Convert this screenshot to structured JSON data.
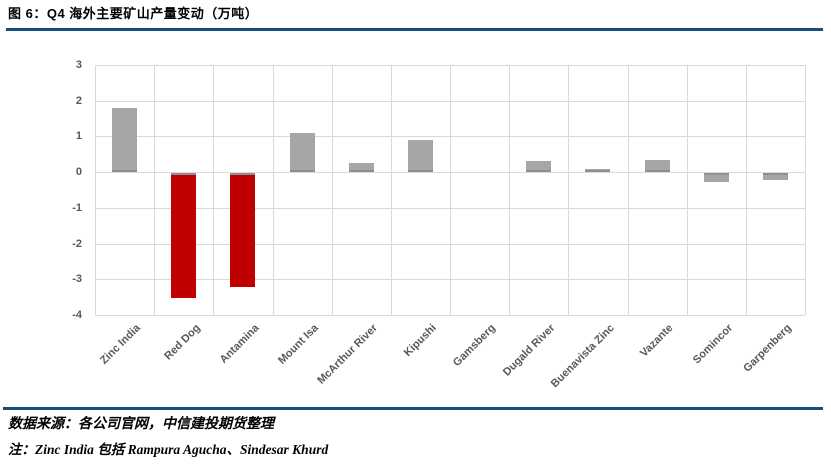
{
  "header": {
    "title": "图 6：Q4 海外主要矿山产量变动（万吨）"
  },
  "footer": {
    "source": "数据来源：各公司官网，中信建投期货整理",
    "note": "注：Zinc India 包括 Rampura Agucha、Sindesar Khurd"
  },
  "colors": {
    "rule_navy": "#174F7C",
    "gridline": "#D9D9D9",
    "bar_gray": "#A6A6A6",
    "bar_red": "#C00000",
    "bar_base_edge": "#8F8F8F",
    "axis_label": "#595959"
  },
  "chart_data": {
    "type": "bar",
    "title": "图 6：Q4 海外主要矿山产量变动（万吨）",
    "xlabel": "",
    "ylabel": "",
    "categories": [
      "Zinc India",
      "Red Dog",
      "Antamina",
      "Mount Isa",
      "McArthur River",
      "Kipushi",
      "Gamsberg",
      "Dugald River",
      "Buenavista Zinc",
      "Vazante",
      "Somincor",
      "Garpenberg"
    ],
    "values": [
      1.8,
      -3.5,
      -3.2,
      1.1,
      0.25,
      0.9,
      0,
      0.3,
      0.1,
      0.35,
      -0.25,
      -0.2
    ],
    "bar_colors": [
      "#A6A6A6",
      "#C00000",
      "#C00000",
      "#A6A6A6",
      "#A6A6A6",
      "#A6A6A6",
      "#A6A6A6",
      "#A6A6A6",
      "#A6A6A6",
      "#A6A6A6",
      "#A6A6A6",
      "#A6A6A6"
    ],
    "ylim": [
      -4,
      3
    ],
    "yticks": [
      3,
      2,
      1,
      0,
      -1,
      -2,
      -3,
      -4
    ],
    "grid": true,
    "legend": "none"
  }
}
